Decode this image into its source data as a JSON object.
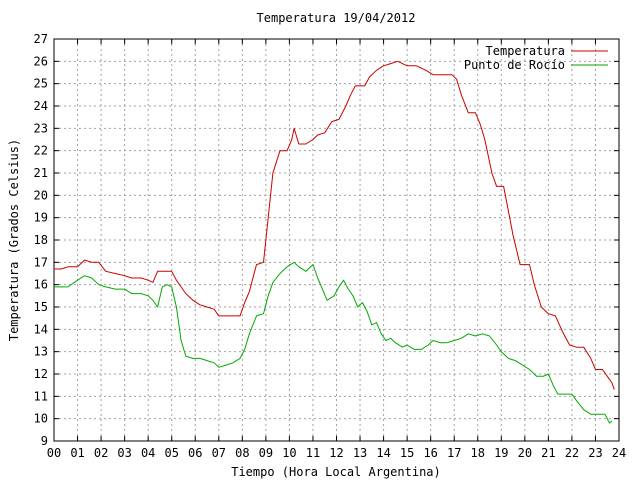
{
  "chart_data": {
    "type": "line",
    "title": "Temperatura 19/04/2012",
    "xlabel": "Tiempo (Hora Local Argentina)",
    "ylabel": "Temperatura (Grados Celsius)",
    "xlim": [
      0,
      24
    ],
    "ylim": [
      9,
      27
    ],
    "x_ticks": [
      "00",
      "01",
      "02",
      "03",
      "04",
      "05",
      "06",
      "07",
      "08",
      "09",
      "10",
      "11",
      "12",
      "13",
      "14",
      "15",
      "16",
      "17",
      "18",
      "19",
      "20",
      "21",
      "22",
      "23",
      "24"
    ],
    "y_ticks": [
      "9",
      "10",
      "11",
      "12",
      "13",
      "14",
      "15",
      "16",
      "17",
      "18",
      "19",
      "20",
      "21",
      "22",
      "23",
      "24",
      "25",
      "26",
      "27"
    ],
    "grid": true,
    "legend_position": "top-right",
    "series": [
      {
        "name": "Temperatura",
        "color": "#cc0000",
        "points": [
          [
            0.0,
            16.7
          ],
          [
            0.3,
            16.7
          ],
          [
            0.6,
            16.8
          ],
          [
            1.0,
            16.8
          ],
          [
            1.3,
            17.1
          ],
          [
            1.6,
            17.0
          ],
          [
            1.9,
            17.0
          ],
          [
            2.2,
            16.6
          ],
          [
            2.6,
            16.5
          ],
          [
            3.0,
            16.4
          ],
          [
            3.3,
            16.3
          ],
          [
            3.7,
            16.3
          ],
          [
            4.0,
            16.2
          ],
          [
            4.2,
            16.1
          ],
          [
            4.4,
            16.6
          ],
          [
            4.8,
            16.6
          ],
          [
            5.0,
            16.6
          ],
          [
            5.2,
            16.2
          ],
          [
            5.4,
            15.9
          ],
          [
            5.6,
            15.6
          ],
          [
            5.9,
            15.3
          ],
          [
            6.2,
            15.1
          ],
          [
            6.5,
            15.0
          ],
          [
            6.8,
            14.9
          ],
          [
            7.0,
            14.6
          ],
          [
            7.3,
            14.6
          ],
          [
            7.6,
            14.6
          ],
          [
            7.9,
            14.6
          ],
          [
            8.1,
            15.2
          ],
          [
            8.3,
            15.7
          ],
          [
            8.6,
            16.9
          ],
          [
            8.9,
            17.0
          ],
          [
            9.1,
            19.0
          ],
          [
            9.3,
            21.0
          ],
          [
            9.6,
            22.0
          ],
          [
            9.9,
            22.0
          ],
          [
            10.1,
            22.5
          ],
          [
            10.2,
            23.0
          ],
          [
            10.4,
            22.3
          ],
          [
            10.7,
            22.3
          ],
          [
            11.0,
            22.5
          ],
          [
            11.2,
            22.7
          ],
          [
            11.5,
            22.8
          ],
          [
            11.8,
            23.3
          ],
          [
            12.1,
            23.4
          ],
          [
            12.4,
            24.0
          ],
          [
            12.6,
            24.5
          ],
          [
            12.8,
            24.9
          ],
          [
            13.2,
            24.9
          ],
          [
            13.4,
            25.3
          ],
          [
            13.7,
            25.6
          ],
          [
            14.0,
            25.8
          ],
          [
            14.3,
            25.9
          ],
          [
            14.6,
            26.0
          ],
          [
            15.0,
            25.8
          ],
          [
            15.4,
            25.8
          ],
          [
            15.8,
            25.6
          ],
          [
            16.1,
            25.4
          ],
          [
            16.5,
            25.4
          ],
          [
            16.9,
            25.4
          ],
          [
            17.1,
            25.2
          ],
          [
            17.3,
            24.5
          ],
          [
            17.6,
            23.7
          ],
          [
            17.9,
            23.7
          ],
          [
            18.1,
            23.2
          ],
          [
            18.3,
            22.5
          ],
          [
            18.6,
            21.0
          ],
          [
            18.8,
            20.4
          ],
          [
            19.1,
            20.4
          ],
          [
            19.3,
            19.3
          ],
          [
            19.5,
            18.2
          ],
          [
            19.8,
            16.9
          ],
          [
            20.2,
            16.9
          ],
          [
            20.4,
            16.0
          ],
          [
            20.7,
            15.0
          ],
          [
            21.0,
            14.7
          ],
          [
            21.3,
            14.6
          ],
          [
            21.6,
            13.9
          ],
          [
            21.9,
            13.3
          ],
          [
            22.2,
            13.2
          ],
          [
            22.5,
            13.2
          ],
          [
            22.8,
            12.7
          ],
          [
            23.0,
            12.2
          ],
          [
            23.3,
            12.2
          ],
          [
            23.5,
            11.9
          ],
          [
            23.7,
            11.6
          ],
          [
            23.8,
            11.3
          ]
        ]
      },
      {
        "name": "Punto de Rocío",
        "color": "#00aa00",
        "points": [
          [
            0.0,
            15.9
          ],
          [
            0.3,
            15.9
          ],
          [
            0.6,
            15.9
          ],
          [
            1.0,
            16.2
          ],
          [
            1.3,
            16.4
          ],
          [
            1.6,
            16.3
          ],
          [
            1.9,
            16.0
          ],
          [
            2.2,
            15.9
          ],
          [
            2.6,
            15.8
          ],
          [
            3.0,
            15.8
          ],
          [
            3.3,
            15.6
          ],
          [
            3.7,
            15.6
          ],
          [
            4.0,
            15.5
          ],
          [
            4.2,
            15.3
          ],
          [
            4.4,
            15.0
          ],
          [
            4.6,
            15.9
          ],
          [
            4.8,
            16.0
          ],
          [
            5.0,
            15.9
          ],
          [
            5.2,
            15.0
          ],
          [
            5.4,
            13.5
          ],
          [
            5.6,
            12.8
          ],
          [
            5.9,
            12.7
          ],
          [
            6.2,
            12.7
          ],
          [
            6.5,
            12.6
          ],
          [
            6.8,
            12.5
          ],
          [
            7.0,
            12.3
          ],
          [
            7.3,
            12.4
          ],
          [
            7.6,
            12.5
          ],
          [
            7.9,
            12.7
          ],
          [
            8.1,
            13.1
          ],
          [
            8.3,
            13.8
          ],
          [
            8.6,
            14.6
          ],
          [
            8.9,
            14.7
          ],
          [
            9.1,
            15.5
          ],
          [
            9.3,
            16.1
          ],
          [
            9.6,
            16.5
          ],
          [
            9.9,
            16.8
          ],
          [
            10.2,
            17.0
          ],
          [
            10.4,
            16.8
          ],
          [
            10.7,
            16.6
          ],
          [
            11.0,
            16.9
          ],
          [
            11.2,
            16.3
          ],
          [
            11.4,
            15.8
          ],
          [
            11.6,
            15.3
          ],
          [
            11.9,
            15.5
          ],
          [
            12.1,
            15.9
          ],
          [
            12.3,
            16.2
          ],
          [
            12.5,
            15.8
          ],
          [
            12.7,
            15.5
          ],
          [
            12.9,
            15.0
          ],
          [
            13.1,
            15.2
          ],
          [
            13.3,
            14.8
          ],
          [
            13.5,
            14.2
          ],
          [
            13.7,
            14.3
          ],
          [
            13.9,
            13.8
          ],
          [
            14.1,
            13.5
          ],
          [
            14.3,
            13.6
          ],
          [
            14.5,
            13.4
          ],
          [
            14.8,
            13.2
          ],
          [
            15.0,
            13.3
          ],
          [
            15.3,
            13.1
          ],
          [
            15.6,
            13.1
          ],
          [
            15.9,
            13.3
          ],
          [
            16.1,
            13.5
          ],
          [
            16.4,
            13.4
          ],
          [
            16.7,
            13.4
          ],
          [
            17.0,
            13.5
          ],
          [
            17.3,
            13.6
          ],
          [
            17.6,
            13.8
          ],
          [
            17.9,
            13.7
          ],
          [
            18.2,
            13.8
          ],
          [
            18.5,
            13.7
          ],
          [
            18.8,
            13.3
          ],
          [
            19.0,
            13.0
          ],
          [
            19.3,
            12.7
          ],
          [
            19.6,
            12.6
          ],
          [
            19.9,
            12.4
          ],
          [
            20.2,
            12.2
          ],
          [
            20.5,
            11.9
          ],
          [
            20.8,
            11.9
          ],
          [
            21.0,
            12.0
          ],
          [
            21.2,
            11.5
          ],
          [
            21.4,
            11.1
          ],
          [
            21.7,
            11.1
          ],
          [
            22.0,
            11.1
          ],
          [
            22.2,
            10.8
          ],
          [
            22.5,
            10.4
          ],
          [
            22.8,
            10.2
          ],
          [
            23.1,
            10.2
          ],
          [
            23.4,
            10.2
          ],
          [
            23.6,
            9.8
          ],
          [
            23.7,
            9.9
          ]
        ]
      }
    ]
  }
}
